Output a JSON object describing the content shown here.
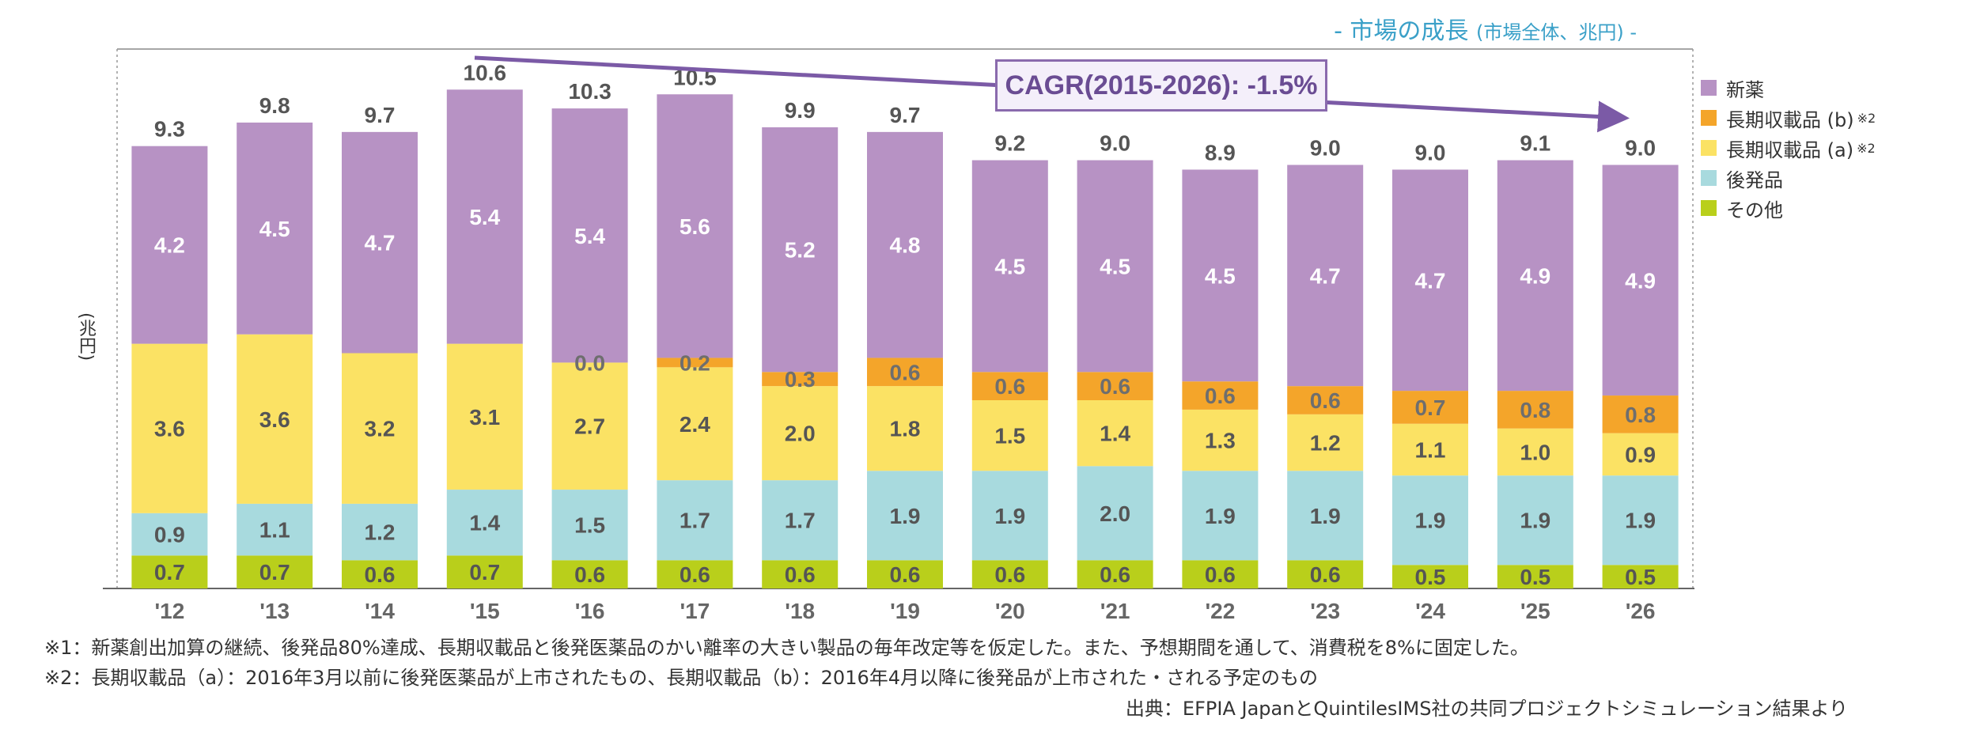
{
  "title": {
    "main": "- 市場の成長",
    "sub": "(市場全体、兆円) -"
  },
  "unit_label": "(兆円)",
  "cagr_label": "CAGR(2015-2026): -1.5%",
  "legend": [
    {
      "label": "新薬",
      "sup": "",
      "color": "#b792c4"
    },
    {
      "label": "長期収載品 (b)",
      "sup": "※2",
      "color": "#f4a52a"
    },
    {
      "label": "長期収載品 (a)",
      "sup": "※2",
      "color": "#fbe264"
    },
    {
      "label": "後発品",
      "sup": "",
      "color": "#a8dade"
    },
    {
      "label": "その他",
      "sup": "",
      "color": "#b9cf1b"
    }
  ],
  "notes": [
    "※1：新薬創出加算の継続、後発品80%達成、長期収載品と後発医薬品のかい離率の大きい製品の毎年改定等を仮定した。また、予想期間を通して、消費税を8%に固定した。",
    "※2：長期収載品（a）：2016年3月以前に後発医薬品が上市されたもの、長期収載品（b）：2016年4月以降に後発品が上市された・される予定のもの"
  ],
  "source": "出典：EFPIA JapanとQuintilesIMS社の共同プロジェクトシミュレーション結果より",
  "chart_data": {
    "type": "bar",
    "stacked": true,
    "title": "市場の成長（市場全体、兆円）",
    "ylabel": "(兆円)",
    "categories": [
      "'12",
      "'13",
      "'14",
      "'15",
      "'16",
      "'17",
      "'18",
      "'19",
      "'20",
      "'21",
      "'22",
      "'23",
      "'24",
      "'25",
      "'26"
    ],
    "ylim": [
      0,
      11.5
    ],
    "series": [
      {
        "name": "その他",
        "color": "#b9cf1b",
        "values": [
          0.7,
          0.7,
          0.6,
          0.7,
          0.6,
          0.6,
          0.6,
          0.6,
          0.6,
          0.6,
          0.6,
          0.6,
          0.5,
          0.5,
          0.5
        ]
      },
      {
        "name": "後発品",
        "color": "#a8dade",
        "values": [
          0.9,
          1.1,
          1.2,
          1.4,
          1.5,
          1.7,
          1.7,
          1.9,
          1.9,
          2.0,
          1.9,
          1.9,
          1.9,
          1.9,
          1.9
        ]
      },
      {
        "name": "長期収載品 (a)",
        "color": "#fbe264",
        "values": [
          3.6,
          3.6,
          3.2,
          3.1,
          2.7,
          2.4,
          2.0,
          1.8,
          1.5,
          1.4,
          1.3,
          1.2,
          1.1,
          1.0,
          0.9
        ]
      },
      {
        "name": "長期収載品 (b)",
        "color": "#f4a52a",
        "values": [
          null,
          null,
          null,
          null,
          0.0,
          0.2,
          0.3,
          0.6,
          0.6,
          0.6,
          0.6,
          0.6,
          0.7,
          0.8,
          0.8
        ]
      },
      {
        "name": "新薬",
        "color": "#b792c4",
        "values": [
          4.2,
          4.5,
          4.7,
          5.4,
          5.4,
          5.6,
          5.2,
          4.8,
          4.5,
          4.5,
          4.5,
          4.7,
          4.7,
          4.9,
          4.9
        ]
      }
    ],
    "totals": [
      9.3,
      9.8,
      9.7,
      10.6,
      10.3,
      10.5,
      9.9,
      9.7,
      9.2,
      9.0,
      8.9,
      9.0,
      9.0,
      9.1,
      9.0
    ],
    "annotation": "CAGR(2015-2026): -1.5%",
    "legend_position": "right"
  }
}
